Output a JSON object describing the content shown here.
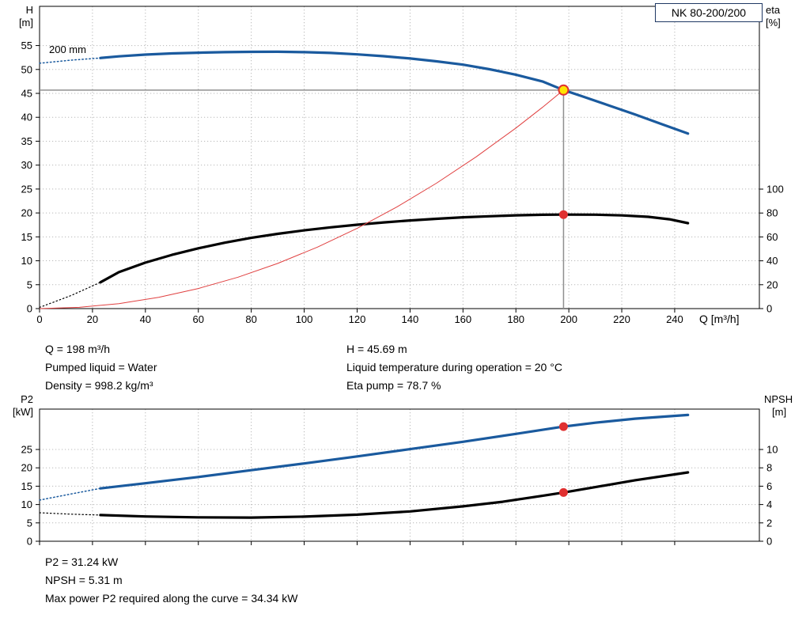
{
  "colors": {
    "curve_blue": "#1a5a9e",
    "curve_black": "#000000",
    "system_red": "#e04040",
    "grid": "#b8b8b8",
    "axis": "#000000",
    "crosshair": "#8f8f8f",
    "duty_fill": "#ffe400",
    "duty_stroke": "#e03030",
    "box_border": "#1f3864"
  },
  "header_box": {
    "label": "NK 80-200/200"
  },
  "top_chart_labels": {
    "y_left_title": "H",
    "y_left_unit": "[m]",
    "y_right_title": "eta",
    "y_right_unit": "[%]",
    "x_title": "Q [m³/h]",
    "impeller": "200 mm"
  },
  "bottom_chart_labels": {
    "y_left_title": "P2",
    "y_left_unit": "[kW]",
    "y_right_title": "NPSH",
    "y_right_unit": "[m]"
  },
  "info_top": {
    "col1": [
      "Q = 198 m³/h",
      "Pumped liquid = Water",
      "Density = 998.2 kg/m³"
    ],
    "col2": [
      "H = 45.69 m",
      "Liquid temperature during operation = 20 °C",
      "Eta pump = 78.7 %"
    ]
  },
  "info_bottom": {
    "lines": [
      "P2 = 31.24 kW",
      "NPSH = 5.31 m",
      "Max power P2 required along the curve = 34.34 kW"
    ]
  },
  "chart_data": [
    {
      "id": "top",
      "type": "line",
      "title": "NK 80-200/200",
      "x": {
        "label": "Q [m³/h]",
        "min": 0,
        "max": 272,
        "ticks": [
          0,
          20,
          40,
          60,
          80,
          100,
          120,
          140,
          160,
          180,
          200,
          220,
          240
        ],
        "show_tick_labels": true
      },
      "y_left": {
        "label": "H [m]",
        "min": 0,
        "max": 63.2,
        "ticks": [
          0,
          5,
          10,
          15,
          20,
          25,
          30,
          35,
          40,
          45,
          50,
          55
        ]
      },
      "y_right": {
        "label": "eta [%]",
        "min": 0,
        "max": 253,
        "ticks": [
          0,
          20,
          40,
          60,
          80,
          100
        ]
      },
      "series": [
        {
          "name": "head-curve-dashed",
          "axis": "left",
          "color": "curve_blue",
          "width": 1.5,
          "dash": "1.5,3",
          "points": [
            [
              0,
              51.3
            ],
            [
              12,
              51.95
            ],
            [
              23,
              52.4
            ]
          ]
        },
        {
          "name": "head-curve",
          "axis": "left",
          "color": "curve_blue",
          "width": 3.2,
          "points": [
            [
              23,
              52.4
            ],
            [
              30,
              52.75
            ],
            [
              40,
              53.1
            ],
            [
              50,
              53.35
            ],
            [
              60,
              53.5
            ],
            [
              70,
              53.62
            ],
            [
              80,
              53.68
            ],
            [
              90,
              53.7
            ],
            [
              100,
              53.62
            ],
            [
              110,
              53.45
            ],
            [
              120,
              53.15
            ],
            [
              130,
              52.78
            ],
            [
              140,
              52.3
            ],
            [
              150,
              51.7
            ],
            [
              160,
              51.0
            ],
            [
              170,
              50.05
            ],
            [
              180,
              48.9
            ],
            [
              190,
              47.5
            ],
            [
              198,
              45.69
            ],
            [
              205,
              44.4
            ],
            [
              215,
              42.5
            ],
            [
              225,
              40.6
            ],
            [
              235,
              38.6
            ],
            [
              245,
              36.6
            ]
          ]
        },
        {
          "name": "eta-curve-dashed",
          "axis": "right",
          "color": "curve_black",
          "width": 1.2,
          "dash": "1.5,3",
          "points": [
            [
              0,
              1
            ],
            [
              12,
              11
            ],
            [
              23,
              22
            ]
          ]
        },
        {
          "name": "eta-curve",
          "axis": "right",
          "color": "curve_black",
          "width": 3.2,
          "points": [
            [
              23,
              22
            ],
            [
              30,
              30.5
            ],
            [
              40,
              38.5
            ],
            [
              50,
              45
            ],
            [
              60,
              50.5
            ],
            [
              70,
              55.2
            ],
            [
              80,
              59.2
            ],
            [
              90,
              62.6
            ],
            [
              100,
              65.5
            ],
            [
              110,
              68
            ],
            [
              120,
              70.2
            ],
            [
              130,
              72.1
            ],
            [
              140,
              73.8
            ],
            [
              150,
              75.2
            ],
            [
              160,
              76.4
            ],
            [
              170,
              77.3
            ],
            [
              180,
              78.1
            ],
            [
              190,
              78.55
            ],
            [
              198,
              78.7
            ],
            [
              210,
              78.6
            ],
            [
              220,
              78.0
            ],
            [
              230,
              76.8
            ],
            [
              238,
              74.8
            ],
            [
              245,
              71.5
            ]
          ]
        },
        {
          "name": "system-curve",
          "axis": "left",
          "color": "system_red",
          "width": 1,
          "points": [
            [
              0,
              0
            ],
            [
              15,
              0.26
            ],
            [
              30,
              1.05
            ],
            [
              45,
              2.36
            ],
            [
              60,
              4.2
            ],
            [
              75,
              6.56
            ],
            [
              90,
              9.44
            ],
            [
              105,
              12.85
            ],
            [
              120,
              16.78
            ],
            [
              135,
              21.24
            ],
            [
              150,
              26.22
            ],
            [
              165,
              31.73
            ],
            [
              180,
              37.76
            ],
            [
              190,
              42.07
            ],
            [
              198,
              45.69
            ]
          ]
        }
      ],
      "guides": [
        {
          "name": "duty-hline",
          "type": "h",
          "axis": "left",
          "value": 45.69,
          "color": "crosshair",
          "width": 1.5
        },
        {
          "name": "duty-vline",
          "type": "v",
          "value": 198,
          "axis_top": "left",
          "top_value": 45.69,
          "color": "crosshair",
          "width": 1.5
        }
      ],
      "markers": [
        {
          "name": "duty-point-head",
          "x": 198,
          "y": 45.69,
          "axis": "left",
          "r": 6,
          "fill": "duty_fill",
          "stroke": "duty_stroke",
          "stroke_width": 2
        },
        {
          "name": "duty-point-eta",
          "x": 198,
          "y": 78.7,
          "axis": "right",
          "r": 5,
          "fill": "duty_stroke",
          "stroke": "duty_stroke",
          "stroke_width": 1
        }
      ]
    },
    {
      "id": "bottom",
      "type": "line",
      "title": "",
      "x": {
        "label": "",
        "min": 0,
        "max": 272,
        "ticks": [
          0,
          20,
          40,
          60,
          80,
          100,
          120,
          140,
          160,
          180,
          200,
          220,
          240
        ],
        "show_tick_labels": false
      },
      "y_left": {
        "label": "P2 [kW]",
        "min": 0,
        "max": 36,
        "ticks": [
          0,
          5,
          10,
          15,
          20,
          25
        ]
      },
      "y_right": {
        "label": "NPSH [m]",
        "min": 0,
        "max": 14.4,
        "ticks": [
          0,
          2,
          4,
          6,
          8,
          10
        ]
      },
      "series": [
        {
          "name": "p2-curve-dashed",
          "axis": "left",
          "color": "curve_blue",
          "width": 1.5,
          "dash": "1.5,3",
          "points": [
            [
              0,
              11.2
            ],
            [
              12,
              12.9
            ],
            [
              23,
              14.4
            ]
          ]
        },
        {
          "name": "p2-curve",
          "axis": "left",
          "color": "curve_blue",
          "width": 3.2,
          "points": [
            [
              23,
              14.4
            ],
            [
              40,
              15.8
            ],
            [
              60,
              17.5
            ],
            [
              80,
              19.35
            ],
            [
              100,
              21.2
            ],
            [
              120,
              23.1
            ],
            [
              140,
              25.1
            ],
            [
              160,
              27.1
            ],
            [
              180,
              29.25
            ],
            [
              198,
              31.24
            ],
            [
              210,
              32.3
            ],
            [
              225,
              33.4
            ],
            [
              245,
              34.4
            ]
          ]
        },
        {
          "name": "npsh-curve-dashed",
          "axis": "right",
          "color": "curve_black",
          "width": 1.2,
          "dash": "1.5,3",
          "points": [
            [
              0,
              3.1
            ],
            [
              12,
              2.95
            ],
            [
              23,
              2.85
            ]
          ]
        },
        {
          "name": "npsh-curve",
          "axis": "right",
          "color": "curve_black",
          "width": 3.2,
          "points": [
            [
              23,
              2.85
            ],
            [
              40,
              2.7
            ],
            [
              60,
              2.6
            ],
            [
              80,
              2.58
            ],
            [
              100,
              2.68
            ],
            [
              120,
              2.9
            ],
            [
              140,
              3.25
            ],
            [
              160,
              3.8
            ],
            [
              175,
              4.3
            ],
            [
              190,
              4.95
            ],
            [
              198,
              5.31
            ],
            [
              210,
              5.9
            ],
            [
              225,
              6.65
            ],
            [
              245,
              7.5
            ]
          ]
        }
      ],
      "guides": [],
      "markers": [
        {
          "name": "duty-point-p2",
          "x": 198,
          "y": 31.24,
          "axis": "left",
          "r": 5,
          "fill": "duty_stroke",
          "stroke": "duty_stroke",
          "stroke_width": 1
        },
        {
          "name": "duty-point-npsh",
          "x": 198,
          "y": 5.31,
          "axis": "right",
          "r": 5,
          "fill": "duty_stroke",
          "stroke": "duty_stroke",
          "stroke_width": 1
        }
      ]
    }
  ]
}
